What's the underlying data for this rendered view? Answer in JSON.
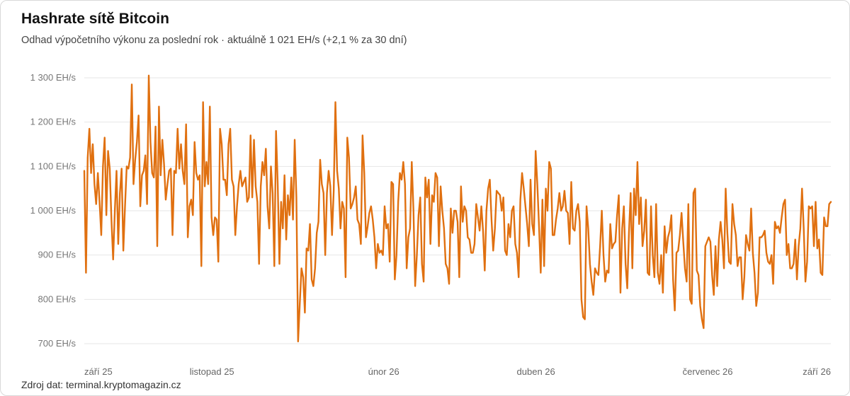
{
  "header": {
    "title": "Hashrate sítě Bitcoin",
    "subtitle": "Odhad výpočetního výkonu za poslední rok · aktuálně 1 021 EH/s (+2,1 % za 30 dní)"
  },
  "footer": {
    "source": "Zdroj dat: terminal.kryptomagazin.cz"
  },
  "colors": {
    "line": "#e07010",
    "grid": "#e6e6e6"
  },
  "chart_data": {
    "type": "line",
    "title": "Hashrate sítě Bitcoin",
    "subtitle": "Odhad výpočetního výkonu za poslední rok · aktuálně 1 021 EH/s (+2,1 % za 30 dní)",
    "ylabel": "",
    "xlabel": "",
    "ylim": [
      700,
      1300
    ],
    "yticks": [
      700,
      800,
      900,
      1000,
      1100,
      1200,
      1300
    ],
    "ytick_labels": [
      "700 EH/s",
      "800 EH/s",
      "900 EH/s",
      "1 000 EH/s",
      "1 100 EH/s",
      "1 200 EH/s",
      "1 300 EH/s"
    ],
    "xticks": [
      "září 25",
      "listopad 25",
      "únor 26",
      "duben 26",
      "červenec 26",
      "září 26"
    ],
    "xtick_positions": [
      0,
      0.171,
      0.401,
      0.605,
      0.835,
      1.0
    ],
    "grid": true,
    "series": [
      {
        "values": [
          1090,
          860,
          1120,
          1185,
          1085,
          1150,
          1060,
          1015,
          1085,
          1020,
          945,
          1100,
          1165,
          990,
          1135,
          1095,
          980,
          890,
          1000,
          1090,
          925,
          1040,
          1095,
          910,
          1010,
          1100,
          1095,
          1120,
          1285,
          1060,
          1115,
          1155,
          1215,
          1010,
          1080,
          1090,
          1125,
          1015,
          1305,
          1155,
          1085,
          1075,
          1190,
          920,
          1235,
          1080,
          1160,
          1105,
          1025,
          1060,
          1090,
          1095,
          945,
          1090,
          1085,
          1185,
          1095,
          1150,
          1090,
          1060,
          1195,
          940,
          1010,
          1025,
          990,
          1155,
          1085,
          1070,
          1080,
          875,
          1245,
          1055,
          1110,
          1060,
          1235,
          985,
          945,
          985,
          980,
          885,
          1185,
          1150,
          1070,
          1070,
          1035,
          1150,
          1185,
          1070,
          1055,
          945,
          1010,
          1060,
          1090,
          1055,
          1065,
          1075,
          1020,
          1030,
          1170,
          1030,
          1160,
          1055,
          1020,
          880,
          1055,
          1110,
          1080,
          1140,
          1010,
          960,
          1100,
          1040,
          875,
          1180,
          1060,
          880,
          1020,
          960,
          1080,
          935,
          1035,
          990,
          1075,
          980,
          1160,
          1030,
          705,
          790,
          870,
          850,
          770,
          915,
          910,
          970,
          845,
          830,
          870,
          950,
          975,
          1115,
          1060,
          1040,
          900,
          1040,
          1090,
          1055,
          945,
          1045,
          1245,
          1090,
          1050,
          960,
          1020,
          1005,
          850,
          1165,
          1120,
          1005,
          1015,
          1030,
          1055,
          980,
          970,
          925,
          1170,
          1085,
          940,
          965,
          995,
          1010,
          980,
          940,
          870,
          925,
          905,
          910,
          900,
          1010,
          960,
          970,
          885,
          1065,
          1060,
          845,
          900,
          1020,
          1085,
          1070,
          1110,
          1060,
          870,
          940,
          960,
          1110,
          1000,
          830,
          900,
          990,
          1030,
          880,
          840,
          1075,
          1030,
          1070,
          925,
          1035,
          1020,
          1085,
          1075,
          920,
          1055,
          1000,
          960,
          880,
          870,
          835,
          1005,
          950,
          1000,
          1000,
          975,
          850,
          1055,
          975,
          1010,
          1000,
          940,
          935,
          905,
          905,
          925,
          1015,
          985,
          955,
          1010,
          955,
          865,
          1000,
          1050,
          1070,
          980,
          910,
          960,
          1045,
          1040,
          1035,
          1000,
          1030,
          910,
          900,
          970,
          940,
          1000,
          1010,
          925,
          905,
          850,
          1025,
          1085,
          1050,
          1010,
          970,
          920,
          1070,
          970,
          945,
          1135,
          1060,
          965,
          860,
          1025,
          875,
          1050,
          1000,
          1110,
          1095,
          945,
          945,
          980,
          1005,
          1040,
          1000,
          1010,
          1045,
          1000,
          995,
          925,
          1065,
          960,
          955,
          1000,
          1015,
          975,
          800,
          760,
          755,
          1010,
          960,
          880,
          840,
          810,
          870,
          860,
          855,
          920,
          1000,
          900,
          840,
          865,
          860,
          970,
          915,
          925,
          930,
          990,
          1035,
          815,
          960,
          1010,
          880,
          825,
          950,
          1040,
          870,
          1050,
          990,
          1110,
          970,
          1030,
          920,
          955,
          1025,
          860,
          855,
          1010,
          900,
          850,
          1015,
          860,
          835,
          900,
          815,
          965,
          905,
          940,
          955,
          990,
          845,
          775,
          905,
          910,
          945,
          995,
          930,
          870,
          840,
          1015,
          800,
          790,
          1040,
          1050,
          865,
          855,
          785,
          755,
          735,
          920,
          930,
          940,
          930,
          855,
          810,
          920,
          830,
          935,
          975,
          935,
          870,
          1050,
          950,
          885,
          880,
          1015,
          970,
          945,
          875,
          895,
          895,
          800,
          850,
          945,
          925,
          910,
          1005,
          905,
          860,
          785,
          815,
          940,
          940,
          945,
          955,
          905,
          885,
          880,
          900,
          835,
          975,
          960,
          965,
          950,
          985,
          1015,
          1025,
          900,
          925,
          870,
          870,
          880,
          935,
          845,
          920,
          960,
          1050,
          960,
          840,
          885,
          1010,
          1005,
          1010,
          920,
          1020,
          915,
          935,
          860,
          855,
          985,
          965,
          965,
          1015,
          1020
        ]
      }
    ]
  }
}
